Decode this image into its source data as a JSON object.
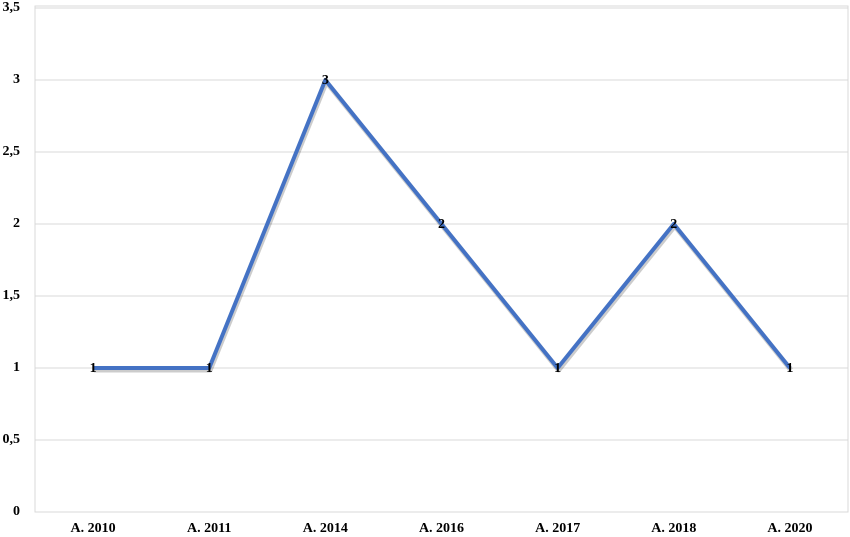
{
  "chart_data": {
    "type": "line",
    "categories": [
      "A. 2010",
      "A. 2011",
      "A. 2014",
      "A. 2016",
      "A. 2017",
      "A. 2018",
      "A. 2020"
    ],
    "values": [
      1,
      1,
      3,
      2,
      1,
      2,
      1
    ],
    "color": "#4472c4",
    "ylim": [
      0,
      3.5
    ],
    "yticks": [
      0,
      {
        "value": 0.5,
        "label": "0,5"
      },
      1,
      {
        "value": 1.5,
        "label": "1,5"
      },
      2,
      {
        "value": 2.5,
        "label": "2,5"
      },
      3,
      {
        "value": 3.5,
        "label": "3,5"
      }
    ],
    "grid": true
  }
}
